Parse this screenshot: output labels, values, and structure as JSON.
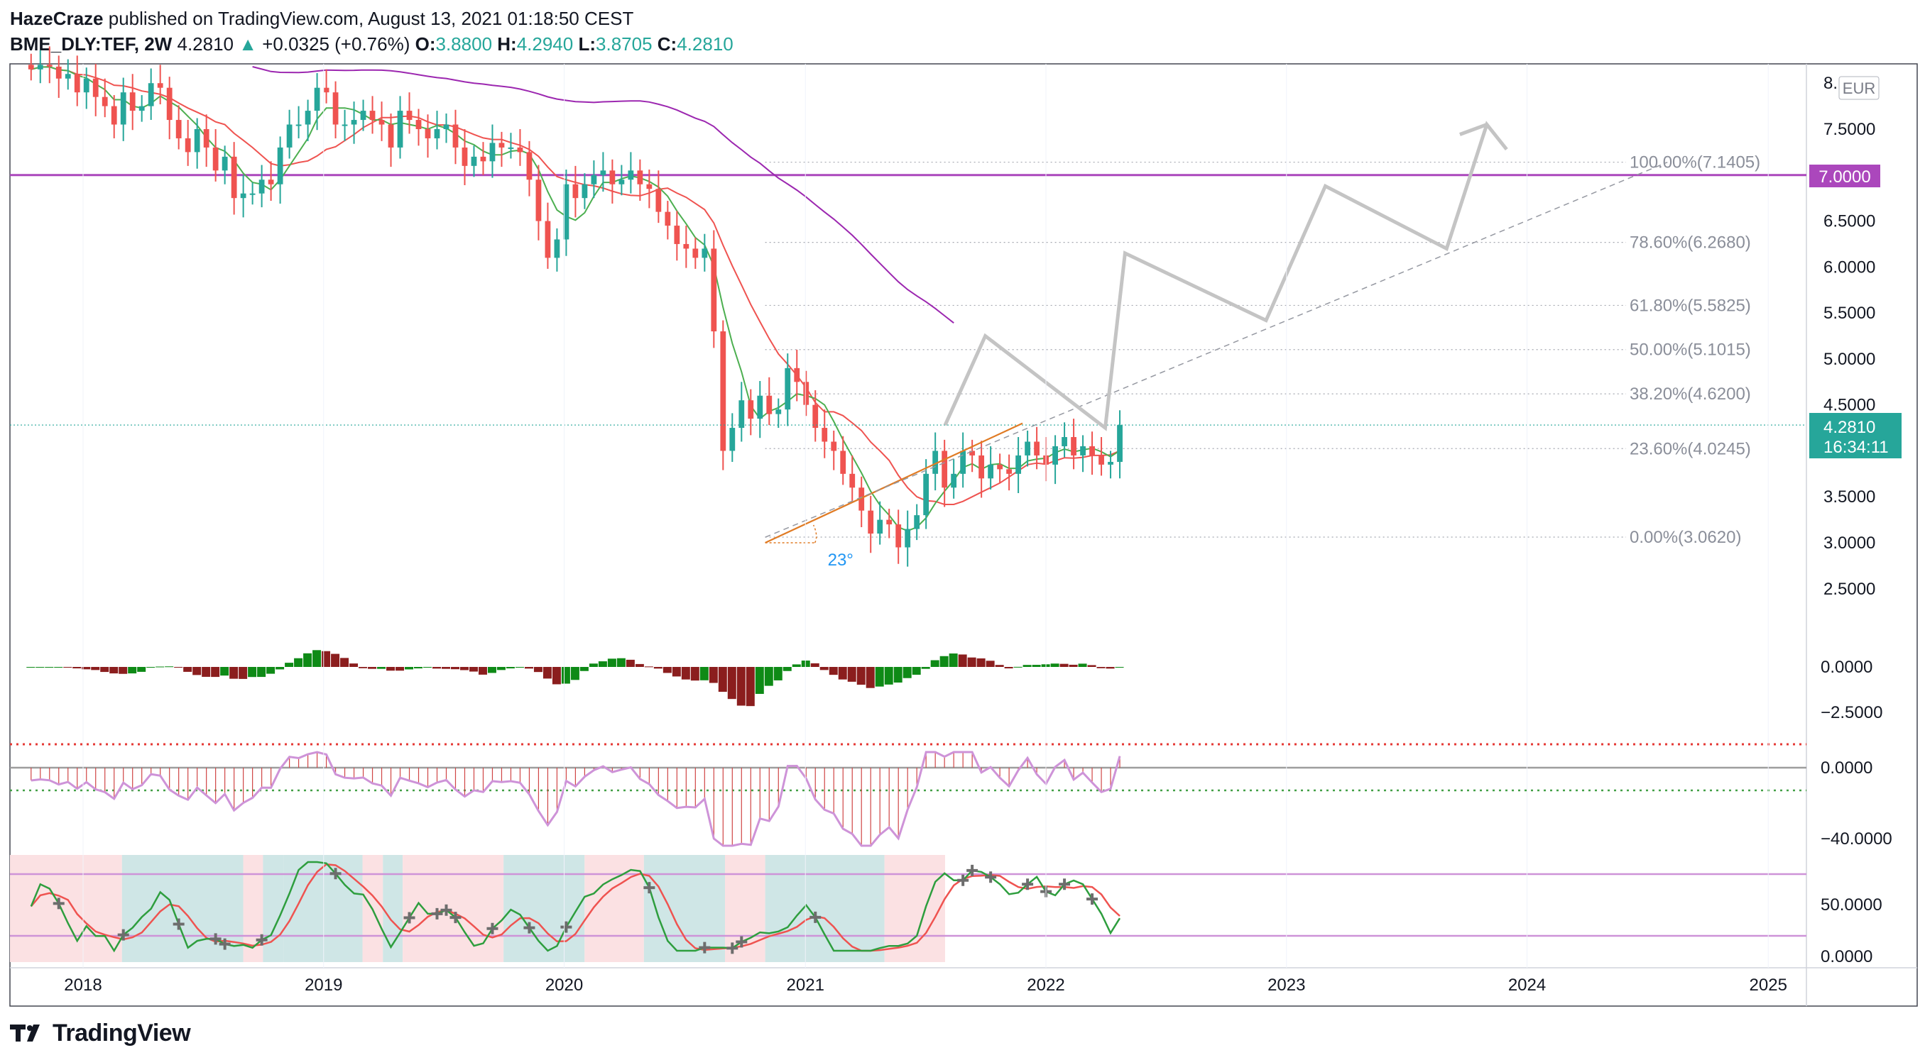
{
  "header": {
    "author": "HazeCraze",
    "published_text": "published on TradingView.com, August 13, 2021 01:18:50 CEST",
    "symbol": "BME_DLY:TEF, 2W",
    "last": "4.2810",
    "change": "+0.0325 (+0.76%)",
    "o_label": "O:",
    "o": "3.8800",
    "h_label": "H:",
    "h": "4.2940",
    "l_label": "L:",
    "l": "3.8705",
    "c_label": "C:",
    "c": "4.2810"
  },
  "price_axis": {
    "currency": "EUR",
    "ticks": [
      "8.",
      "7.5000",
      "6.5000",
      "6.0000",
      "5.5000",
      "5.0000",
      "4.5000",
      "3.5000",
      "3.0000",
      "2.5000"
    ],
    "horizontal_level": "7.0000",
    "current_price": "4.2810",
    "countdown": "16:34:11"
  },
  "time_axis": {
    "labels": [
      "2018",
      "2019",
      "2020",
      "2021",
      "2022",
      "2023",
      "2024",
      "2025"
    ]
  },
  "fib_levels": [
    {
      "label": "100.00%(7.1405)",
      "price": 7.1405
    },
    {
      "label": "78.60%(6.2680)",
      "price": 6.268
    },
    {
      "label": "61.80%(5.5825)",
      "price": 5.5825
    },
    {
      "label": "50.00%(5.1015)",
      "price": 5.1015
    },
    {
      "label": "38.20%(4.6200)",
      "price": 4.62
    },
    {
      "label": "23.60%(4.0245)",
      "price": 4.0245
    },
    {
      "label": "0.00%(3.0620)",
      "price": 3.062
    }
  ],
  "trendline_angle": "23°",
  "macd_axis": {
    "ticks": [
      "0.0000",
      "−2.5000"
    ]
  },
  "osc_axis": {
    "ticks": [
      "0.0000",
      "−40.0000"
    ]
  },
  "stoch_axis": {
    "ticks": [
      "50.0000",
      "0.0000"
    ]
  },
  "colors": {
    "up": "#26a69a",
    "down": "#ef5350",
    "level": "#ab47bc",
    "fast_ma": "#4caf50",
    "slow_ma": "#ef5350",
    "long_ma": "#9c27b0"
  },
  "chart_data": {
    "type": "candlestick",
    "symbol": "BME_DLY:TEF",
    "interval": "2W",
    "ylim": [
      2.25,
      8.1
    ],
    "xlim": [
      "2017-09",
      "2025-10"
    ],
    "candles_start": "2017-09",
    "candle_step_days": 14,
    "closes": [
      8.15,
      8.2,
      8.18,
      8.05,
      8.1,
      7.9,
      8.05,
      7.85,
      7.75,
      7.55,
      7.9,
      7.7,
      7.75,
      8.0,
      7.95,
      7.6,
      7.4,
      7.25,
      7.5,
      7.3,
      7.05,
      7.2,
      6.75,
      6.8,
      6.8,
      6.95,
      6.9,
      7.3,
      7.55,
      7.55,
      7.7,
      7.95,
      7.9,
      7.55,
      7.55,
      7.6,
      7.7,
      7.6,
      7.55,
      7.3,
      7.7,
      7.6,
      7.5,
      7.4,
      7.5,
      7.55,
      7.3,
      7.1,
      7.2,
      7.15,
      7.35,
      7.3,
      7.3,
      7.25,
      6.95,
      6.5,
      6.1,
      6.3,
      6.9,
      6.75,
      6.9,
      7.0,
      7.05,
      6.9,
      6.95,
      7.05,
      6.9,
      6.85,
      6.6,
      6.45,
      6.25,
      6.2,
      6.1,
      6.2,
      5.3,
      4.0,
      4.25,
      4.55,
      4.35,
      4.6,
      4.4,
      4.45,
      4.9,
      4.75,
      4.5,
      4.25,
      4.1,
      4.0,
      3.75,
      3.6,
      3.35,
      3.1,
      3.25,
      3.2,
      2.95,
      3.15,
      3.3,
      3.75,
      4.0,
      3.6,
      3.75,
      4.0,
      3.95,
      3.7,
      3.85,
      3.8,
      3.75,
      3.95,
      4.1,
      3.95,
      3.85,
      4.05,
      4.15,
      3.95,
      4.05,
      3.95,
      3.85,
      3.88,
      4.281
    ],
    "fast_ma_label": "",
    "slow_ma_label": "",
    "long_ma_label": "",
    "projection_path": [
      [
        "2021-08",
        4.28
      ],
      [
        "2021-10",
        5.25
      ],
      [
        "2022-04",
        4.25
      ],
      [
        "2022-05",
        6.15
      ],
      [
        "2022-12",
        5.42
      ],
      [
        "2023-03",
        6.88
      ],
      [
        "2023-09",
        6.2
      ],
      [
        "2023-11",
        7.55
      ],
      [
        "2023-12",
        7.28
      ]
    ],
    "dashed_channel": [
      [
        "2020-11",
        3.06
      ],
      [
        "2024-08",
        7.14
      ]
    ],
    "fib_range": [
      3.062,
      7.1405
    ],
    "macd_histogram_range": [
      -4.2,
      0.6
    ],
    "oscillator_range": [
      -50,
      12
    ],
    "stoch_range": [
      5,
      95
    ]
  }
}
